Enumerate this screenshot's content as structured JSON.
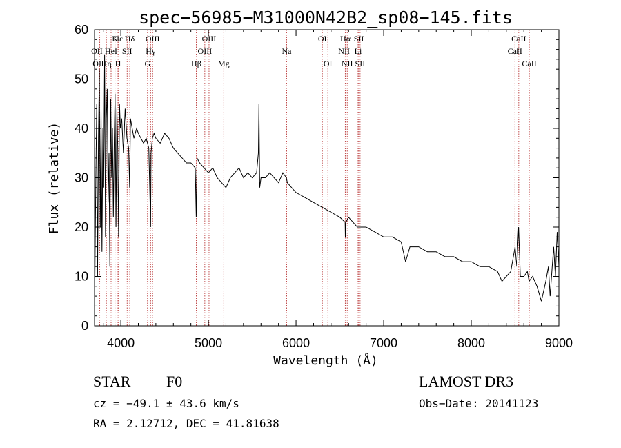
{
  "chart_data": {
    "type": "line",
    "title": "spec−56985−M31000N42B2_sp08−145.fits",
    "xlabel": "Wavelength (Å)",
    "ylabel": "Flux (relative)",
    "xlim": [
      3700,
      9000
    ],
    "ylim": [
      0,
      60
    ],
    "x_ticks": [
      {
        "value": 4000,
        "label": "4000"
      },
      {
        "value": 5000,
        "label": "5000"
      },
      {
        "value": 6000,
        "label": "6000"
      },
      {
        "value": 7000,
        "label": "7000"
      },
      {
        "value": 8000,
        "label": "8000"
      },
      {
        "value": 9000,
        "label": "9000"
      }
    ],
    "y_ticks": [
      {
        "value": 0,
        "label": "0"
      },
      {
        "value": 10,
        "label": "10"
      },
      {
        "value": 20,
        "label": "20"
      },
      {
        "value": 30,
        "label": "30"
      },
      {
        "value": 40,
        "label": "40"
      },
      {
        "value": 50,
        "label": "50"
      },
      {
        "value": 60,
        "label": "60"
      }
    ],
    "spectrum": {
      "x": [
        3700,
        3715,
        3725,
        3735,
        3745,
        3755,
        3765,
        3775,
        3785,
        3795,
        3805,
        3815,
        3825,
        3835,
        3845,
        3855,
        3865,
        3875,
        3885,
        3895,
        3905,
        3915,
        3925,
        3935,
        3945,
        3955,
        3965,
        3975,
        3985,
        3995,
        4010,
        4030,
        4050,
        4070,
        4090,
        4101,
        4110,
        4130,
        4150,
        4180,
        4200,
        4230,
        4260,
        4290,
        4320,
        4340,
        4345,
        4360,
        4380,
        4400,
        4450,
        4500,
        4550,
        4600,
        4650,
        4700,
        4750,
        4800,
        4850,
        4861,
        4870,
        4900,
        4950,
        5000,
        5050,
        5100,
        5150,
        5200,
        5250,
        5300,
        5350,
        5400,
        5450,
        5500,
        5550,
        5570,
        5577,
        5585,
        5600,
        5650,
        5700,
        5750,
        5800,
        5850,
        5890,
        5900,
        5950,
        6000,
        6100,
        6200,
        6300,
        6400,
        6500,
        6560,
        6563,
        6570,
        6600,
        6650,
        6700,
        6800,
        6900,
        7000,
        7100,
        7200,
        7250,
        7300,
        7400,
        7500,
        7600,
        7700,
        7800,
        7900,
        8000,
        8100,
        8200,
        8300,
        8350,
        8400,
        8450,
        8500,
        8520,
        8540,
        8560,
        8600,
        8640,
        8660,
        8700,
        8750,
        8800,
        8850,
        8880,
        8900,
        8920,
        8940,
        8960,
        8980,
        9000
      ],
      "flux": [
        2,
        30,
        45,
        10,
        38,
        52,
        20,
        44,
        15,
        40,
        28,
        55,
        18,
        42,
        48,
        25,
        35,
        12,
        46,
        30,
        40,
        22,
        38,
        47,
        20,
        44,
        36,
        18,
        45,
        40,
        42,
        35,
        44,
        38,
        36,
        28,
        42,
        40,
        38,
        40,
        39,
        38,
        37,
        38,
        36,
        20,
        35,
        38,
        39,
        38,
        37,
        39,
        38,
        36,
        35,
        34,
        33,
        33,
        32,
        22,
        34,
        33,
        32,
        31,
        32,
        30,
        29,
        28,
        30,
        31,
        32,
        30,
        31,
        30,
        31,
        35,
        45,
        28,
        30,
        30,
        31,
        30,
        29,
        31,
        30,
        29,
        28,
        27,
        26,
        25,
        24,
        23,
        22,
        21,
        18,
        21,
        22,
        21,
        20,
        20,
        19,
        18,
        18,
        17,
        13,
        16,
        16,
        15,
        15,
        14,
        14,
        13,
        13,
        12,
        12,
        11,
        9,
        10,
        11,
        16,
        12,
        20,
        10,
        10,
        11,
        9,
        10,
        8,
        5,
        9,
        12,
        6,
        11,
        16,
        10,
        19,
        12
      ]
    },
    "lines": [
      {
        "name": "Hε",
        "wavelength": 3970,
        "row": 0
      },
      {
        "name": "K",
        "wavelength": 3934,
        "row": 0
      },
      {
        "name": "Hδ",
        "wavelength": 4102,
        "row": 0
      },
      {
        "name": "OIII",
        "wavelength": 4363,
        "row": 0
      },
      {
        "name": "OIII",
        "wavelength": 5007,
        "row": 0
      },
      {
        "name": "OI",
        "wavelength": 6300,
        "row": 0
      },
      {
        "name": "Hα",
        "wavelength": 6563,
        "row": 0
      },
      {
        "name": "SII",
        "wavelength": 6717,
        "row": 0
      },
      {
        "name": "CaII",
        "wavelength": 8542,
        "row": 0
      },
      {
        "name": "OII",
        "wavelength": 3727,
        "row": 1
      },
      {
        "name": "HeI",
        "wavelength": 3889,
        "row": 1
      },
      {
        "name": "SII",
        "wavelength": 4072,
        "row": 1
      },
      {
        "name": "Hγ",
        "wavelength": 4340,
        "row": 1
      },
      {
        "name": "OIII",
        "wavelength": 4959,
        "row": 1
      },
      {
        "name": "Na",
        "wavelength": 5893,
        "row": 1
      },
      {
        "name": "NII",
        "wavelength": 6548,
        "row": 1
      },
      {
        "name": "Li",
        "wavelength": 6708,
        "row": 1
      },
      {
        "name": "CaII",
        "wavelength": 8498,
        "row": 1
      },
      {
        "name": "OIII",
        "wavelength": 3760,
        "row": 2
      },
      {
        "name": "Hη",
        "wavelength": 3835,
        "row": 2
      },
      {
        "name": "H",
        "wavelength": 3968,
        "row": 2
      },
      {
        "name": "G",
        "wavelength": 4305,
        "row": 2
      },
      {
        "name": "Hβ",
        "wavelength": 4861,
        "row": 2
      },
      {
        "name": "Mg",
        "wavelength": 5175,
        "row": 2
      },
      {
        "name": "OI",
        "wavelength": 6363,
        "row": 2
      },
      {
        "name": "NII",
        "wavelength": 6584,
        "row": 2
      },
      {
        "name": "SII",
        "wavelength": 6731,
        "row": 2
      },
      {
        "name": "CaII",
        "wavelength": 8662,
        "row": 2
      }
    ]
  },
  "info": {
    "object_class": "STAR",
    "subclass": "F0",
    "survey": "LAMOST DR3",
    "redshift": "cz = −49.1 ± 43.6 km/s",
    "obs_date": "Obs−Date: 20141123",
    "coords": "RA =   2.12712, DEC =  41.81638"
  }
}
